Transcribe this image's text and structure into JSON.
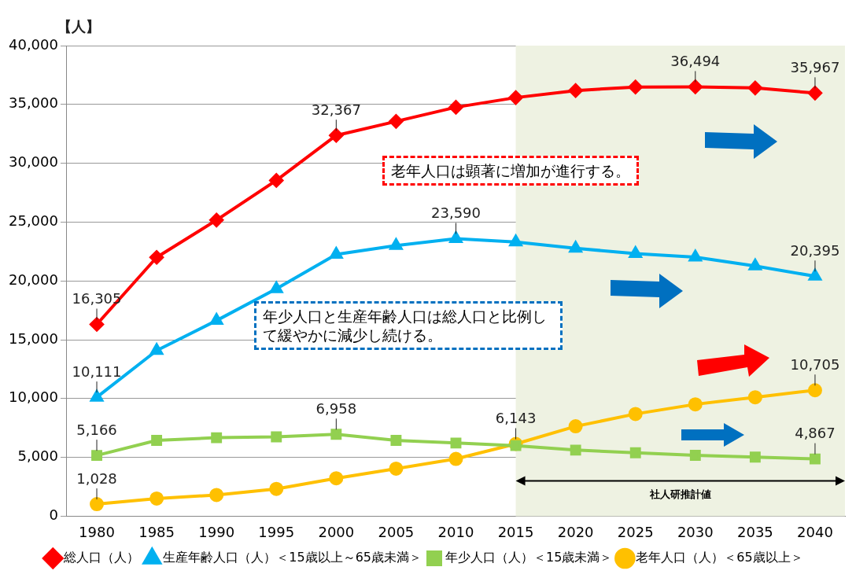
{
  "chart_data": {
    "type": "line",
    "ylabel": "【人】",
    "x": [
      1980,
      1985,
      1990,
      1995,
      2000,
      2005,
      2010,
      2015,
      2020,
      2025,
      2030,
      2035,
      2040
    ],
    "xlim": [
      1977.5,
      2042.5
    ],
    "xticks": [
      1980,
      1985,
      1990,
      1995,
      2000,
      2005,
      2010,
      2015,
      2020,
      2025,
      2030,
      2035,
      2040
    ],
    "ylim": [
      0,
      40000
    ],
    "yticks": [
      0,
      {
        "value": 5000,
        "label": "5,000"
      },
      {
        "value": 10000,
        "label": "10,000"
      },
      {
        "value": 15000,
        "label": "15,000"
      },
      {
        "value": 20000,
        "label": "20,000"
      },
      {
        "value": 25000,
        "label": "25,000"
      },
      {
        "value": 30000,
        "label": "30,000"
      },
      {
        "value": 35000,
        "label": "35,000"
      },
      {
        "value": 40000,
        "label": "40,000"
      }
    ],
    "grid": "y",
    "legend": "bottom",
    "series": [
      {
        "name": "総人口（人）",
        "color": "#ff0000",
        "marker": "diamond",
        "values": [
          16305,
          22000,
          25170,
          28540,
          32367,
          33560,
          34760,
          35580,
          36180,
          36480,
          36494,
          36400,
          35967
        ],
        "value_labels": [
          "16,305",
          null,
          null,
          null,
          "32,367",
          null,
          null,
          null,
          null,
          null,
          "36,494",
          null,
          "35,967"
        ]
      },
      {
        "name": "生産年齢人口（人）＜15歳以上～65歳未満＞",
        "color": "#00b0f0",
        "marker": "triangle",
        "values": [
          10111,
          14080,
          16630,
          19330,
          22250,
          23000,
          23590,
          23300,
          22770,
          22320,
          22020,
          21270,
          20395
        ],
        "value_labels": [
          "10,111",
          null,
          null,
          null,
          null,
          null,
          "23,590",
          null,
          null,
          null,
          null,
          null,
          "20,395"
        ]
      },
      {
        "name": "年少人口（人）＜15歳未満＞",
        "color": "#92d050",
        "marker": "square",
        "values": [
          5166,
          6440,
          6670,
          6740,
          6958,
          6440,
          6220,
          6000,
          5620,
          5390,
          5170,
          5020,
          4867
        ],
        "value_labels": [
          "5,166",
          null,
          null,
          null,
          "6,958",
          null,
          null,
          null,
          null,
          null,
          null,
          null,
          "4,867"
        ]
      },
      {
        "name": "老年人口（人）＜65歳以上＞",
        "color": "#ffc000",
        "marker": "circle",
        "values": [
          1028,
          1500,
          1800,
          2320,
          3220,
          4040,
          4870,
          6143,
          7640,
          8690,
          9510,
          10110,
          10705
        ],
        "value_labels": [
          "1,028",
          null,
          null,
          null,
          null,
          null,
          null,
          "6,143",
          null,
          null,
          null,
          null,
          "10,705"
        ]
      }
    ],
    "bands": [
      {
        "axis": "x",
        "from": 2015,
        "to": 2042.5,
        "label": "社人研推計値",
        "color": "#eef2e2"
      }
    ],
    "annotations": [
      "老年人口は顕著に増加が進行する。",
      "年少人口と生産年齢人口は総人口と比例して緩やかに減少し続ける。"
    ]
  }
}
